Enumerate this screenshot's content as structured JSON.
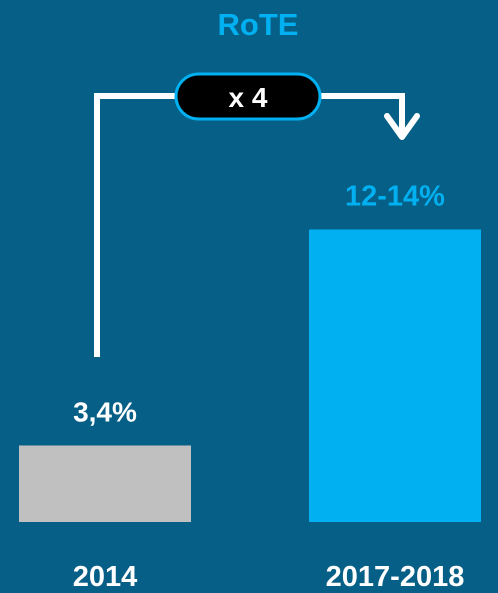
{
  "chart_data": {
    "type": "bar",
    "title": "RoTE",
    "categories": [
      "2014",
      "2017-2018"
    ],
    "values": [
      3.4,
      13
    ],
    "value_labels": [
      "3,4%",
      "12-14%"
    ],
    "ylim": [
      0,
      14.4
    ],
    "annotation": "x 4",
    "colors": {
      "background": "#065f86",
      "bar_2014": "#c0c0c0",
      "bar_2017_2018": "#00b0f0",
      "title": "#00b0f0",
      "highlight_label": "#00b0f0",
      "text": "#ffffff",
      "badge_fill": "#000000",
      "badge_border": "#00b0f0",
      "arrow": "#ffffff"
    },
    "grid": false,
    "legend": "none"
  }
}
